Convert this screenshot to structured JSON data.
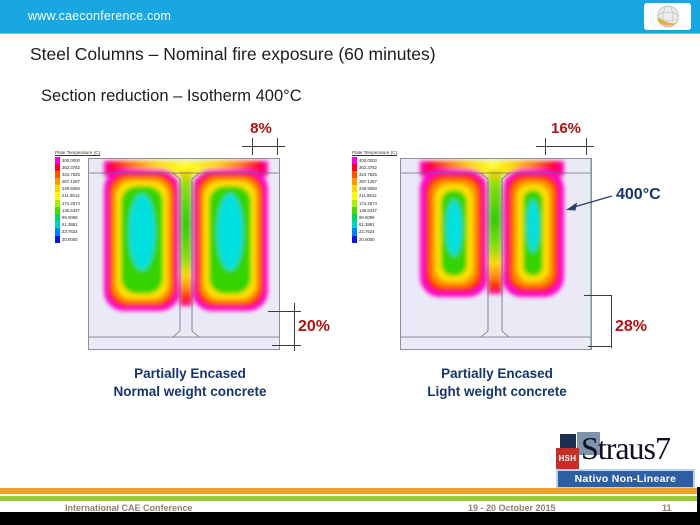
{
  "banner": {
    "url_text": "www.caeconference.com",
    "bg_color": "#18a7e1"
  },
  "icons": {
    "banner_logo": "cae-globe"
  },
  "slide": {
    "title": "Steel Columns – Nominal fire exposure (60 minutes)",
    "subtitle": "Section reduction – Isotherm 400°C"
  },
  "legend": {
    "title": "Plate Temperature (C)",
    "values": [
      "400.0000",
      "362.3762",
      "324.7525",
      "287.1287",
      "249.5050",
      "211.8812",
      "174.2574",
      "136.6337",
      "99.0099",
      "61.3861",
      "23.7624",
      "20.0000"
    ],
    "colors": [
      "#ff00e0",
      "#ff0022",
      "#ff5500",
      "#ff9900",
      "#ffd500",
      "#fdff00",
      "#a8f000",
      "#4ad800",
      "#00d55e",
      "#00d2d2",
      "#0080ff",
      "#1414e0"
    ]
  },
  "plots": [
    {
      "name": "normal-weight",
      "top_pct": "8%",
      "bottom_pct": "20%",
      "caption1": "Partially Encased",
      "caption2": "Normal weight concrete"
    },
    {
      "name": "light-weight",
      "top_pct": "16%",
      "bottom_pct": "28%",
      "isotherm": "400°C",
      "caption1": "Partially Encased",
      "caption2": "Light weight concrete"
    }
  ],
  "chart_data": [
    {
      "type": "heatmap",
      "title": "Partially Encased – Normal weight concrete",
      "legend_title": "Plate Temperature (C)",
      "temperature_scale_C": [
        400.0,
        362.3762,
        324.7525,
        287.1287,
        249.505,
        211.8812,
        174.2574,
        136.6337,
        99.0099,
        61.3861,
        23.7624,
        20.0
      ],
      "isotherm_C": 400,
      "section_reduction": {
        "top": "8%",
        "bottom": "20%"
      }
    },
    {
      "type": "heatmap",
      "title": "Partially Encased – Light weight concrete",
      "legend_title": "Plate Temperature (C)",
      "temperature_scale_C": [
        400.0,
        362.3762,
        324.7525,
        287.1287,
        249.505,
        211.8812,
        174.2574,
        136.6337,
        99.0099,
        61.3861,
        23.7624,
        20.0
      ],
      "isotherm_C": 400,
      "section_reduction": {
        "top": "16%",
        "bottom": "28%"
      }
    }
  ],
  "logo": {
    "hsh": "HSH",
    "product": "Straus7",
    "tagline": "Nativo Non-Lineare",
    "bar_color": "#2e5fa3",
    "hsh_color": "#c23128"
  },
  "footer": {
    "conference": "International CAE Conference",
    "date": "19 - 20 October 2015",
    "page": "11",
    "orange_stripe": "#f0a028",
    "green_stripe": "#9dc83c"
  },
  "colors": {
    "accent_red": "#b01212",
    "navy": "#17356b",
    "banner_blue": "#18a7e1"
  }
}
